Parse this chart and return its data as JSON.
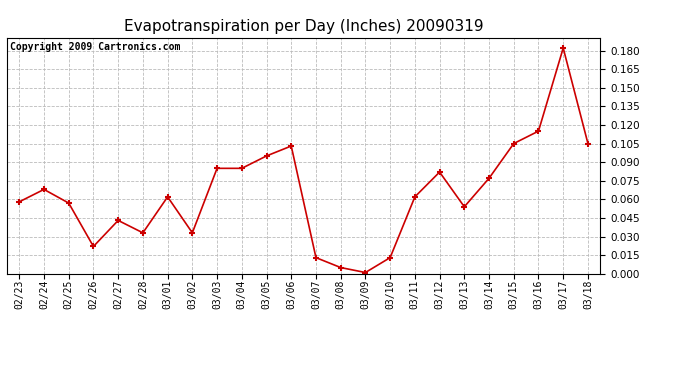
{
  "title": "Evapotranspiration per Day (Inches) 20090319",
  "copyright_text": "Copyright 2009 Cartronics.com",
  "x_labels": [
    "02/23",
    "02/24",
    "02/25",
    "02/26",
    "02/27",
    "02/28",
    "03/01",
    "03/02",
    "03/03",
    "03/04",
    "03/05",
    "03/06",
    "03/07",
    "03/08",
    "03/09",
    "03/10",
    "03/11",
    "03/12",
    "03/13",
    "03/14",
    "03/15",
    "03/16",
    "03/17",
    "03/18"
  ],
  "y_values": [
    0.058,
    0.068,
    0.057,
    0.022,
    0.043,
    0.033,
    0.062,
    0.033,
    0.085,
    0.085,
    0.095,
    0.103,
    0.013,
    0.005,
    0.001,
    0.013,
    0.062,
    0.082,
    0.054,
    0.077,
    0.105,
    0.115,
    0.182,
    0.105
  ],
  "line_color": "#cc0000",
  "marker": "+",
  "marker_size": 5,
  "marker_edge_width": 1.5,
  "line_width": 1.2,
  "ylim": [
    0.0,
    0.1905
  ],
  "yticks": [
    0.0,
    0.015,
    0.03,
    0.045,
    0.06,
    0.075,
    0.09,
    0.105,
    0.12,
    0.135,
    0.15,
    0.165,
    0.18
  ],
  "background_color": "#ffffff",
  "plot_bg_color": "#ffffff",
  "grid_color": "#bbbbbb",
  "title_fontsize": 11,
  "copyright_fontsize": 7,
  "tick_fontsize": 7,
  "ytick_fontsize": 7.5
}
